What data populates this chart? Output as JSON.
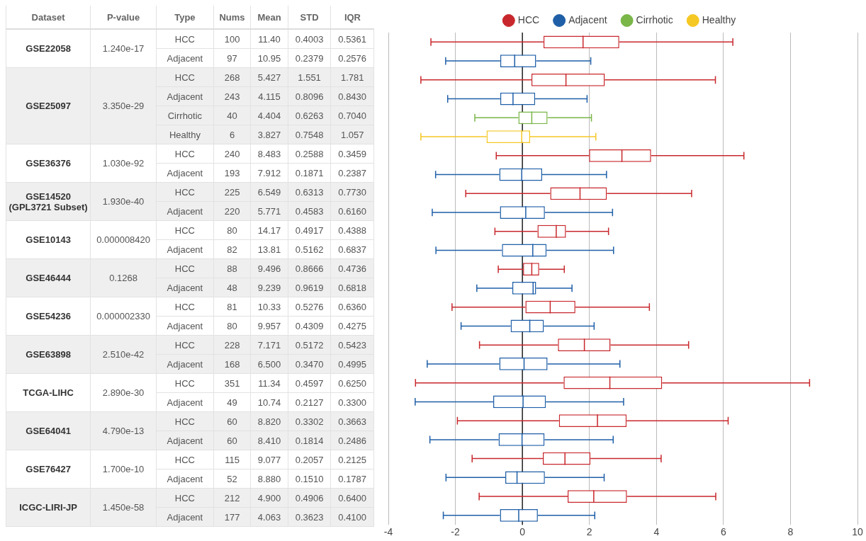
{
  "chart_data": [
    {
      "type": "other",
      "categories": [
        "Dataset",
        "P-value",
        "Type",
        "Nums",
        "Mean",
        "STD",
        "IQR"
      ],
      "cells": [
        [
          "GSE22058",
          "1.240e-17",
          "HCC",
          "100",
          "11.40",
          "0.4003",
          "0.5361"
        ],
        [
          null,
          null,
          "Adjacent",
          "97",
          "10.95",
          "0.2379",
          "0.2576"
        ],
        [
          "GSE25097",
          "3.350e-29",
          "HCC",
          "268",
          "5.427",
          "1.551",
          "1.781"
        ],
        [
          null,
          null,
          "Adjacent",
          "243",
          "4.115",
          "0.8096",
          "0.8430"
        ],
        [
          null,
          null,
          "Cirrhotic",
          "40",
          "4.404",
          "0.6263",
          "0.7040"
        ],
        [
          null,
          null,
          "Healthy",
          "6",
          "3.827",
          "0.7548",
          "1.057"
        ],
        [
          "GSE36376",
          "1.030e-92",
          "HCC",
          "240",
          "8.483",
          "0.2588",
          "0.3459"
        ],
        [
          null,
          null,
          "Adjacent",
          "193",
          "7.912",
          "0.1871",
          "0.2387"
        ],
        [
          "GSE14520 (GPL3721 Subset)",
          "1.930e-40",
          "HCC",
          "225",
          "6.549",
          "0.6313",
          "0.7730"
        ],
        [
          null,
          null,
          "Adjacent",
          "220",
          "5.771",
          "0.4583",
          "0.6160"
        ],
        [
          "GSE10143",
          "0.000008420",
          "HCC",
          "80",
          "14.17",
          "0.4917",
          "0.4388"
        ],
        [
          null,
          null,
          "Adjacent",
          "82",
          "13.81",
          "0.5162",
          "0.6837"
        ],
        [
          "GSE46444",
          "0.1268",
          "HCC",
          "88",
          "9.496",
          "0.8666",
          "0.4736"
        ],
        [
          null,
          null,
          "Adjacent",
          "48",
          "9.239",
          "0.9619",
          "0.6818"
        ],
        [
          "GSE54236",
          "0.000002330",
          "HCC",
          "81",
          "10.33",
          "0.5276",
          "0.6360"
        ],
        [
          null,
          null,
          "Adjacent",
          "80",
          "9.957",
          "0.4309",
          "0.4275"
        ],
        [
          "GSE63898",
          "2.510e-42",
          "HCC",
          "228",
          "7.171",
          "0.5172",
          "0.5423"
        ],
        [
          null,
          null,
          "Adjacent",
          "168",
          "6.500",
          "0.3470",
          "0.4995"
        ],
        [
          "TCGA-LIHC",
          "2.890e-30",
          "HCC",
          "351",
          "11.34",
          "0.4597",
          "0.6250"
        ],
        [
          null,
          null,
          "Adjacent",
          "49",
          "10.74",
          "0.2127",
          "0.3300"
        ],
        [
          "GSE64041",
          "4.790e-13",
          "HCC",
          "60",
          "8.820",
          "0.3302",
          "0.3663"
        ],
        [
          null,
          null,
          "Adjacent",
          "60",
          "8.410",
          "0.1814",
          "0.2486"
        ],
        [
          "GSE76427",
          "1.700e-10",
          "HCC",
          "115",
          "9.077",
          "0.2057",
          "0.2125"
        ],
        [
          null,
          null,
          "Adjacent",
          "52",
          "8.880",
          "0.1510",
          "0.1787"
        ],
        [
          "ICGC-LIRI-JP",
          "1.450e-58",
          "HCC",
          "212",
          "4.900",
          "0.4906",
          "0.6400"
        ],
        [
          null,
          null,
          "Adjacent",
          "177",
          "4.063",
          "0.3623",
          "0.4100"
        ]
      ]
    },
    {
      "type": "box",
      "orientation": "horizontal",
      "legend": "top",
      "grid": "x",
      "tick_labels": "x",
      "categories": [
        null,
        null,
        null,
        null,
        null,
        null,
        null,
        null,
        null,
        null,
        null,
        null,
        null,
        null,
        null,
        null,
        null,
        null,
        null,
        null,
        null,
        null,
        null,
        null,
        null,
        null
      ],
      "xlim": [
        -4,
        10
      ],
      "xticks": [
        -4,
        -2,
        0,
        2,
        4,
        6,
        8,
        10
      ],
      "ref_lines": [
        {
          "axis": "x",
          "value": 0,
          "color": "#222222"
        }
      ],
      "series": [
        {
          "name": "HCC",
          "color": "#c8282d",
          "boxes": [
            {
              "low": -2.73,
              "q1": 0.63,
              "median": 1.81,
              "q3": 2.89,
              "high": 6.28
            },
            null,
            {
              "low": -3.03,
              "q1": 0.27,
              "median": 1.3,
              "q3": 2.46,
              "high": 5.76
            },
            null,
            null,
            null,
            {
              "low": -0.78,
              "q1": 1.99,
              "median": 2.97,
              "q3": 3.84,
              "high": 6.61
            },
            null,
            {
              "low": -1.69,
              "q1": 0.83,
              "median": 1.72,
              "q3": 2.52,
              "high": 5.05
            },
            null,
            {
              "low": -0.82,
              "q1": 0.45,
              "median": 1.01,
              "q3": 1.3,
              "high": 2.57
            },
            null,
            {
              "low": -0.72,
              "q1": 0.02,
              "median": 0.28,
              "q3": 0.5,
              "high": 1.25
            },
            null,
            {
              "low": -2.1,
              "q1": 0.09,
              "median": 0.83,
              "q3": 1.58,
              "high": 3.79
            },
            null,
            {
              "low": -1.28,
              "q1": 1.06,
              "median": 1.85,
              "q3": 2.63,
              "high": 4.96
            },
            null,
            {
              "low": -3.19,
              "q1": 1.23,
              "median": 2.61,
              "q3": 4.17,
              "high": 8.57
            },
            null,
            {
              "low": -1.94,
              "q1": 1.09,
              "median": 2.24,
              "q3": 3.11,
              "high": 6.14
            },
            null,
            {
              "low": -1.5,
              "q1": 0.61,
              "median": 1.27,
              "q3": 2.03,
              "high": 4.14
            },
            null,
            {
              "low": -1.29,
              "q1": 1.35,
              "median": 2.13,
              "q3": 3.12,
              "high": 5.77
            },
            null
          ]
        },
        {
          "name": "Adjacent",
          "color": "#1f5fa8",
          "boxes": [
            null,
            {
              "low": -2.29,
              "q1": -0.66,
              "median": -0.23,
              "q3": 0.41,
              "high": 2.04
            },
            null,
            {
              "low": -2.23,
              "q1": -0.66,
              "median": -0.28,
              "q3": 0.38,
              "high": 1.93
            },
            null,
            null,
            null,
            {
              "low": -2.59,
              "q1": -0.69,
              "median": -0.02,
              "q3": 0.59,
              "high": 2.51
            },
            null,
            {
              "low": -2.69,
              "q1": -0.67,
              "median": 0.1,
              "q3": 0.67,
              "high": 2.69
            },
            null,
            {
              "low": -2.58,
              "q1": -0.61,
              "median": 0.31,
              "q3": 0.72,
              "high": 2.72
            },
            null,
            {
              "low": -1.36,
              "q1": -0.3,
              "median": 0.32,
              "q3": 0.41,
              "high": 1.48
            },
            null,
            {
              "low": -1.83,
              "q1": -0.35,
              "median": 0.22,
              "q3": 0.64,
              "high": 2.14
            },
            null,
            {
              "low": -2.84,
              "q1": -0.69,
              "median": 0.05,
              "q3": 0.75,
              "high": 2.91
            },
            null,
            {
              "low": -3.2,
              "q1": -0.87,
              "median": 0.02,
              "q3": 0.7,
              "high": 3.02
            },
            null,
            {
              "low": -2.76,
              "q1": -0.71,
              "median": -0.01,
              "q3": 0.66,
              "high": 2.71
            },
            null,
            {
              "low": -2.28,
              "q1": -0.51,
              "median": -0.16,
              "q3": 0.67,
              "high": 2.44
            },
            null,
            {
              "low": -2.36,
              "q1": -0.67,
              "median": -0.11,
              "q3": 0.46,
              "high": 2.16
            }
          ]
        },
        {
          "name": "Cirrhotic",
          "color": "#7ab648",
          "boxes": [
            null,
            null,
            null,
            null,
            {
              "low": -1.42,
              "q1": -0.12,
              "median": 0.28,
              "q3": 0.75,
              "high": 2.06
            },
            null,
            null,
            null,
            null,
            null,
            null,
            null,
            null,
            null,
            null,
            null,
            null,
            null,
            null,
            null,
            null,
            null,
            null,
            null,
            null,
            null
          ]
        },
        {
          "name": "Healthy",
          "color": "#f5c824",
          "boxes": [
            null,
            null,
            null,
            null,
            null,
            {
              "low": -3.03,
              "q1": -1.07,
              "median": -0.02,
              "q3": 0.23,
              "high": 2.19
            },
            null,
            null,
            null,
            null,
            null,
            null,
            null,
            null,
            null,
            null,
            null,
            null,
            null,
            null,
            null,
            null,
            null,
            null,
            null,
            null
          ]
        }
      ]
    }
  ]
}
